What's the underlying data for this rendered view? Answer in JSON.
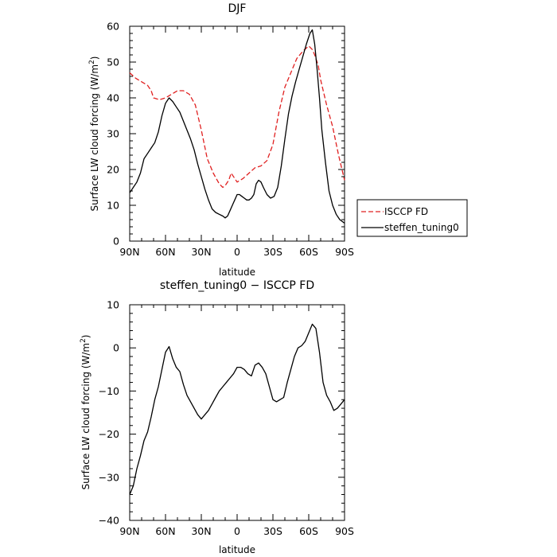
{
  "chart_data": [
    {
      "type": "line",
      "title": "DJF",
      "xlabel": "latitude",
      "ylabel": "Surface LW cloud forcing (W/m²)",
      "xlim": [
        -90,
        90
      ],
      "ylim": [
        0,
        60
      ],
      "x_ticks": [
        -90,
        -60,
        -30,
        0,
        30,
        60,
        90
      ],
      "x_tick_labels": [
        "90N",
        "60N",
        "30N",
        "0",
        "30S",
        "60S",
        "90S"
      ],
      "y_ticks": [
        0,
        10,
        20,
        30,
        40,
        50,
        60
      ],
      "y_tick_labels": [
        "0",
        "10",
        "20",
        "30",
        "40",
        "50",
        "60"
      ],
      "legend_position": "right, outside plot",
      "series": [
        {
          "name": "ISCCP FD",
          "color": "#e02020",
          "style": "dashed",
          "x": [
            -90,
            -85,
            -80,
            -75,
            -72,
            -70,
            -65,
            -60,
            -55,
            -50,
            -45,
            -40,
            -35,
            -30,
            -25,
            -20,
            -15,
            -12,
            -10,
            -7,
            -5,
            0,
            5,
            10,
            15,
            20,
            25,
            30,
            35,
            40,
            45,
            50,
            55,
            60,
            63,
            65,
            68,
            70,
            75,
            80,
            85,
            90
          ],
          "y": [
            47,
            45.5,
            44.5,
            43.5,
            42,
            40,
            39.5,
            40,
            41,
            42,
            42,
            41,
            38,
            31,
            23,
            19,
            16,
            15,
            15.5,
            17,
            19,
            16.5,
            17.5,
            19,
            20.5,
            21,
            22.5,
            27,
            36,
            43,
            47,
            51,
            53,
            54.5,
            53.5,
            52,
            49,
            45,
            38,
            32,
            24,
            17
          ]
        },
        {
          "name": "steffen_tuning0",
          "color": "#000000",
          "style": "solid",
          "x": [
            -90,
            -87,
            -84,
            -81,
            -78,
            -75,
            -72,
            -69,
            -66,
            -63,
            -60,
            -57,
            -54,
            -51,
            -48,
            -45,
            -42,
            -39,
            -36,
            -33,
            -30,
            -27,
            -24,
            -21,
            -18,
            -15,
            -12,
            -10,
            -8,
            -6,
            -4,
            -2,
            0,
            2,
            4,
            6,
            8,
            10,
            12,
            14,
            16,
            18,
            20,
            22,
            25,
            28,
            31,
            34,
            37,
            40,
            43,
            46,
            49,
            52,
            55,
            58,
            61,
            63,
            65,
            67,
            69,
            71,
            74,
            77,
            80,
            83,
            86,
            90
          ],
          "y": [
            13.5,
            15,
            16.5,
            19,
            23,
            24.5,
            26,
            27.5,
            30.5,
            35,
            38.5,
            40,
            39,
            37.5,
            36,
            33.5,
            31,
            28.5,
            25.5,
            21.5,
            18,
            14.5,
            11.5,
            9,
            8,
            7.5,
            7,
            6.5,
            7,
            8.5,
            10,
            11.5,
            13,
            13,
            12.5,
            12,
            11.5,
            11.5,
            12,
            13,
            16,
            17,
            16.5,
            15,
            13,
            12,
            12.5,
            15,
            21,
            28.5,
            35.5,
            40.5,
            44.5,
            48,
            51.5,
            55,
            58,
            59,
            55,
            48,
            40,
            31,
            22,
            14,
            10,
            7.5,
            6,
            5
          ]
        }
      ]
    },
    {
      "type": "line",
      "title": "steffen_tuning0 − ISCCP FD",
      "xlabel": "latitude",
      "ylabel": "Surface LW cloud forcing (W/m²)",
      "xlim": [
        -90,
        90
      ],
      "ylim": [
        -40,
        10
      ],
      "x_ticks": [
        -90,
        -60,
        -30,
        0,
        30,
        60,
        90
      ],
      "x_tick_labels": [
        "90N",
        "60N",
        "30N",
        "0",
        "30S",
        "60S",
        "90S"
      ],
      "y_ticks": [
        -40,
        -30,
        -20,
        -10,
        0,
        10
      ],
      "y_tick_labels": [
        "−40",
        "−30",
        "−20",
        "−10",
        "0",
        "10"
      ],
      "series": [
        {
          "color": "#000000",
          "style": "solid",
          "x": [
            -90,
            -87,
            -84,
            -81,
            -78,
            -75,
            -72,
            -69,
            -66,
            -63,
            -60,
            -57,
            -54,
            -51,
            -48,
            -45,
            -42,
            -39,
            -36,
            -33,
            -30,
            -27,
            -24,
            -21,
            -18,
            -15,
            -12,
            -9,
            -6,
            -3,
            0,
            3,
            6,
            9,
            12,
            15,
            18,
            21,
            24,
            27,
            30,
            33,
            36,
            39,
            42,
            45,
            48,
            51,
            54,
            57,
            60,
            63,
            66,
            69,
            72,
            75,
            78,
            81,
            84,
            87,
            90
          ],
          "y": [
            -34,
            -32,
            -28,
            -25,
            -21.5,
            -19.5,
            -16,
            -12,
            -9,
            -5,
            -1,
            0.3,
            -2.5,
            -4.5,
            -5.5,
            -8.5,
            -11,
            -12.5,
            -14,
            -15.5,
            -16.5,
            -15.5,
            -14.5,
            -13,
            -11.5,
            -10,
            -9,
            -8,
            -7,
            -6,
            -4.5,
            -4.5,
            -5,
            -6,
            -6.5,
            -4,
            -3.5,
            -4.5,
            -6,
            -9,
            -12,
            -12.5,
            -12,
            -11.5,
            -8,
            -5,
            -2,
            0,
            0.5,
            1.5,
            3.5,
            5.5,
            4.5,
            -1,
            -8,
            -11,
            -12.5,
            -14.5,
            -14,
            -13,
            -12
          ]
        }
      ]
    }
  ]
}
